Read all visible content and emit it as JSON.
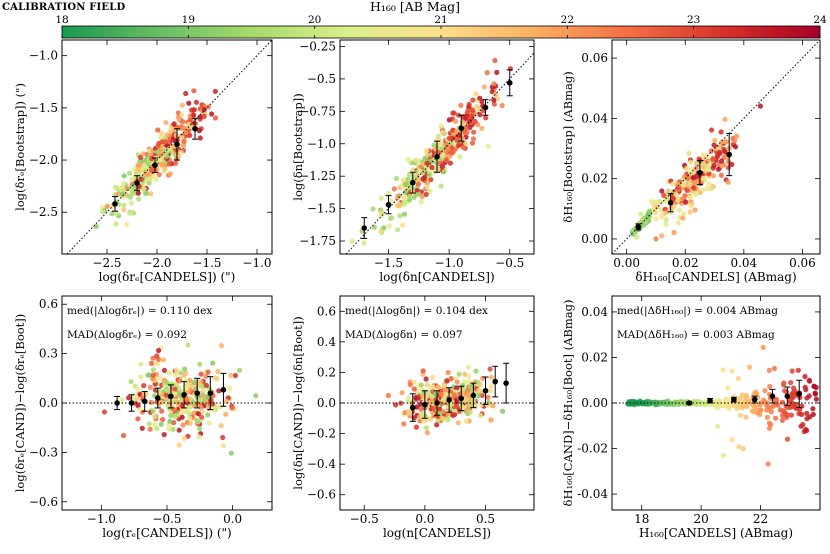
{
  "figure_title": "CALIBRATION FIELD",
  "colorbar": {
    "label": "H₁₆₀ [AB Mag]",
    "ticks": [
      18,
      19,
      20,
      21,
      22,
      23,
      24
    ],
    "range": [
      18,
      24
    ],
    "colors": [
      "#1a9850",
      "#66bd63",
      "#a6d96a",
      "#d9ef8b",
      "#fee08b",
      "#fdae61",
      "#f46d43",
      "#d73027",
      "#a50026"
    ]
  },
  "chart_data": [
    {
      "type": "scatter",
      "id": "re-scatter",
      "xlabel": "log(δrₑ[CANDELS]) (\")",
      "ylabel": "log(δrₑ[Bootstrap]) (\")",
      "xlim": [
        -2.95,
        -0.85
      ],
      "ylim": [
        -2.9,
        -0.85
      ],
      "xticks": [
        -2.5,
        -2.0,
        -1.5,
        -1.0
      ],
      "yticks": [
        -2.5,
        -2.0,
        -1.5,
        -1.0
      ],
      "identity_line": true,
      "binned": {
        "x": [
          -2.42,
          -2.2,
          -2.02,
          -1.8,
          -1.62
        ],
        "y": [
          -2.42,
          -2.22,
          -2.05,
          -1.85,
          -1.7
        ],
        "err": [
          0.07,
          0.07,
          0.07,
          0.15,
          0.1
        ]
      },
      "cloud": {
        "count": 360,
        "center_x": -1.95,
        "spread_x": 0.33,
        "slope": 1.0,
        "offset": 0.0,
        "scatter": 0.17,
        "mag_low": 19.0,
        "mag_high": 23.8
      }
    },
    {
      "type": "scatter",
      "id": "n-scatter",
      "xlabel": "log(δn[CANDELS])",
      "ylabel": "log(δn[Bootstrap])",
      "xlim": [
        -1.9,
        -0.3
      ],
      "ylim": [
        -1.85,
        -0.2
      ],
      "xticks": [
        -1.5,
        -1.0,
        -0.5
      ],
      "yticks": [
        -1.75,
        -1.5,
        -1.25,
        -1.0,
        -0.75,
        -0.5,
        -0.25
      ],
      "identity_line": true,
      "binned": {
        "x": [
          -1.7,
          -1.5,
          -1.3,
          -1.1,
          -0.9,
          -0.7,
          -0.5
        ],
        "y": [
          -1.65,
          -1.47,
          -1.3,
          -1.1,
          -0.88,
          -0.72,
          -0.53
        ],
        "err": [
          0.08,
          0.07,
          0.08,
          0.12,
          0.1,
          0.06,
          0.1
        ]
      },
      "cloud": {
        "count": 360,
        "center_x": -1.05,
        "spread_x": 0.32,
        "slope": 1.0,
        "offset": 0.0,
        "scatter": 0.13,
        "mag_low": 19.0,
        "mag_high": 23.8
      }
    },
    {
      "type": "scatter",
      "id": "mag-scatter",
      "xlabel": "δH₁₆₀[CANDELS] (ABmag)",
      "ylabel": "δH₁₆₀[Bootstrap] (ABmag)",
      "xlim": [
        -0.005,
        0.066
      ],
      "ylim": [
        -0.005,
        0.066
      ],
      "xticks": [
        0.0,
        0.02,
        0.04,
        0.06
      ],
      "yticks": [
        0.0,
        0.02,
        0.04,
        0.06
      ],
      "tick_format": "fixed2",
      "identity_line": true,
      "binned": {
        "x": [
          0.004,
          0.015,
          0.025,
          0.035
        ],
        "y": [
          0.004,
          0.012,
          0.022,
          0.028
        ],
        "err": [
          0.001,
          0.003,
          0.004,
          0.007
        ]
      },
      "cloud": {
        "count": 340,
        "center_x": 0.022,
        "spread_x": 0.011,
        "slope": 0.85,
        "offset": 0.0,
        "scatter": 0.006,
        "mag_low": 18.5,
        "mag_high": 23.8
      }
    },
    {
      "type": "scatter",
      "id": "re-residual",
      "xlabel": "log(rₑ[CANDELS]) (\")",
      "ylabel": "log(δrₑ[CAND])−log(δrₑ[Boot])",
      "xlim": [
        -1.3,
        0.3
      ],
      "ylim": [
        -0.65,
        0.65
      ],
      "xticks": [
        -1.0,
        -0.5,
        0.0
      ],
      "yticks": [
        -0.6,
        -0.3,
        0.0,
        0.3,
        0.6
      ],
      "zero_line": true,
      "annotations": [
        "med(|Δlogδrₑ|) = 0.110 dex",
        "MAD(Δlogδrₑ) = 0.092"
      ],
      "binned": {
        "x": [
          -0.88,
          -0.77,
          -0.67,
          -0.57,
          -0.47,
          -0.37,
          -0.27,
          -0.17,
          -0.07
        ],
        "y": [
          0.0,
          0.0,
          0.01,
          0.03,
          0.04,
          0.05,
          0.06,
          0.06,
          0.08
        ],
        "err": [
          0.04,
          0.05,
          0.06,
          0.06,
          0.07,
          0.08,
          0.09,
          0.1,
          0.1
        ]
      },
      "cloud": {
        "count": 330,
        "center_x": -0.4,
        "spread_x": 0.3,
        "slope": 0.0,
        "offset": 0.03,
        "scatter": 0.17,
        "mag_low": 19.0,
        "mag_high": 23.8
      }
    },
    {
      "type": "scatter",
      "id": "n-residual",
      "xlabel": "log(n[CANDELS])",
      "ylabel": "log(δn[CAND])−log(δn[Boot])",
      "xlim": [
        -0.7,
        0.9
      ],
      "ylim": [
        -0.7,
        0.7
      ],
      "xticks": [
        -0.5,
        0.0,
        0.5
      ],
      "yticks": [
        -0.6,
        -0.4,
        -0.2,
        0.0,
        0.2,
        0.4,
        0.6
      ],
      "zero_line": true,
      "annotations": [
        "med(|Δlogδn|) = 0.104 dex",
        "MAD(Δlogδn) = 0.097"
      ],
      "binned": {
        "x": [
          -0.1,
          0.0,
          0.1,
          0.2,
          0.3,
          0.4,
          0.5,
          0.58,
          0.67
        ],
        "y": [
          -0.03,
          -0.01,
          0.0,
          0.02,
          0.03,
          0.05,
          0.08,
          0.14,
          0.13
        ],
        "err": [
          0.09,
          0.09,
          0.08,
          0.08,
          0.08,
          0.08,
          0.09,
          0.1,
          0.13
        ]
      },
      "cloud": {
        "count": 330,
        "center_x": 0.2,
        "spread_x": 0.28,
        "slope": 0.1,
        "offset": 0.02,
        "scatter": 0.13,
        "mag_low": 19.0,
        "mag_high": 23.8
      }
    },
    {
      "type": "scatter",
      "id": "mag-residual",
      "xlabel": "H₁₆₀[CANDELS] (ABmag)",
      "ylabel": "δH₁₆₀[CAND]−δH₁₆₀[Boot] (ABmag)",
      "xlim": [
        17.0,
        24.0
      ],
      "ylim": [
        -0.047,
        0.047
      ],
      "xticks": [
        18,
        20,
        22
      ],
      "yticks": [
        -0.04,
        -0.02,
        0.0,
        0.02,
        0.04
      ],
      "tick_format": "fixed2",
      "zero_line": true,
      "color_by_x": true,
      "annotations": [
        "med(|ΔδH₁₆₀|) = 0.004 ABmag",
        "MAD(ΔδH₁₆₀) = 0.003 ABmag"
      ],
      "binned": {
        "x": [
          19.6,
          20.3,
          21.1,
          21.8,
          22.4,
          22.9,
          23.3
        ],
        "y": [
          0.0,
          0.001,
          0.0015,
          0.0015,
          0.003,
          0.003,
          0.004
        ],
        "err": [
          0.0005,
          0.001,
          0.001,
          0.0015,
          0.003,
          0.004,
          0.006
        ]
      },
      "cloud": {
        "count": 360,
        "center_x": 22.0,
        "spread_x": 1.0,
        "slope": 0.0,
        "offset": 0.0,
        "scatter": 0.004,
        "mag_low": 17.5,
        "mag_high": 23.9
      }
    }
  ]
}
